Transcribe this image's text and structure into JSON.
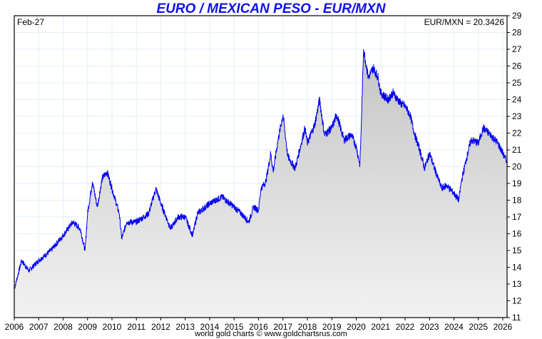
{
  "chart_data": {
    "type": "line",
    "title": "EURO / MEXICAN PESO - EUR/MXN",
    "date_label": "Feb-27",
    "current_label": "EUR/MXN = 20.3426",
    "footer": "world gold charts © www.goldchartsrus.com",
    "xlabel": "",
    "ylabel": "",
    "xlim": [
      2006,
      2026.2
    ],
    "ylim": [
      11,
      29
    ],
    "x_ticks": [
      "2006",
      "2007",
      "2008",
      "2009",
      "2010",
      "2011",
      "2012",
      "2013",
      "2014",
      "2015",
      "2016",
      "2017",
      "2018",
      "2019",
      "2020",
      "2021",
      "2022",
      "2023",
      "2024",
      "2025",
      "2026"
    ],
    "y_ticks": [
      11,
      12,
      13,
      14,
      15,
      16,
      17,
      18,
      19,
      20,
      21,
      22,
      23,
      24,
      25,
      26,
      27,
      28,
      29
    ],
    "grid": true,
    "colors": {
      "line": "#0000ee",
      "title": "#1010ee",
      "grid": "#e2eef8"
    },
    "series": [
      {
        "name": "EUR/MXN",
        "x": [
          2006.0,
          2006.3,
          2006.6,
          2007.0,
          2007.5,
          2008.0,
          2008.4,
          2008.7,
          2008.9,
          2009.0,
          2009.2,
          2009.4,
          2009.6,
          2009.8,
          2010.0,
          2010.3,
          2010.4,
          2010.6,
          2011.0,
          2011.5,
          2011.8,
          2012.0,
          2012.4,
          2012.7,
          2013.0,
          2013.3,
          2013.5,
          2014.0,
          2014.5,
          2015.0,
          2015.3,
          2015.6,
          2015.8,
          2016.0,
          2016.1,
          2016.3,
          2016.5,
          2016.6,
          2016.8,
          2017.0,
          2017.2,
          2017.5,
          2017.9,
          2018.0,
          2018.3,
          2018.5,
          2018.7,
          2019.0,
          2019.2,
          2019.5,
          2019.8,
          2020.0,
          2020.15,
          2020.2,
          2020.3,
          2020.5,
          2020.7,
          2020.9,
          2021.0,
          2021.3,
          2021.5,
          2021.8,
          2022.0,
          2022.2,
          2022.4,
          2022.6,
          2022.8,
          2023.0,
          2023.3,
          2023.5,
          2023.7,
          2024.0,
          2024.2,
          2024.3,
          2024.5,
          2024.7,
          2025.0,
          2025.2,
          2025.5,
          2025.8,
          2026.0,
          2026.15
        ],
        "y": [
          12.7,
          14.4,
          13.8,
          14.4,
          15.0,
          15.9,
          16.7,
          16.3,
          15.0,
          17.2,
          19.1,
          17.6,
          19.3,
          19.7,
          18.7,
          17.2,
          15.7,
          16.7,
          16.7,
          17.2,
          18.7,
          17.8,
          16.3,
          17.0,
          17.0,
          15.9,
          17.2,
          17.8,
          18.2,
          17.6,
          17.2,
          16.7,
          17.6,
          17.4,
          18.7,
          19.1,
          20.8,
          19.7,
          21.6,
          23.1,
          20.6,
          19.9,
          22.3,
          21.4,
          22.5,
          24.0,
          21.9,
          22.3,
          23.1,
          21.6,
          21.9,
          21.2,
          20.1,
          22.1,
          27.0,
          25.3,
          25.9,
          25.3,
          24.4,
          24.0,
          24.4,
          23.8,
          23.6,
          23.1,
          21.9,
          21.0,
          19.9,
          20.8,
          19.5,
          18.7,
          18.9,
          18.4,
          18.0,
          19.1,
          20.4,
          21.6,
          21.4,
          22.3,
          21.9,
          21.4,
          20.8,
          20.34
        ]
      }
    ]
  }
}
